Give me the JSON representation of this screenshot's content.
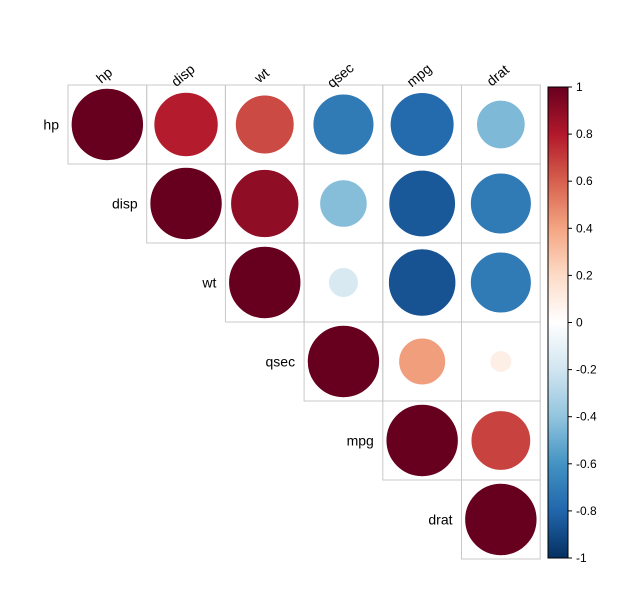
{
  "chart_data": {
    "type": "heatmap",
    "subtype": "correlation-circle-upper-triangle",
    "variables": [
      "hp",
      "disp",
      "wt",
      "qsec",
      "mpg",
      "drat"
    ],
    "matrix": [
      [
        1.0,
        0.79,
        0.66,
        -0.71,
        -0.78,
        -0.45
      ],
      [
        0.79,
        1.0,
        0.89,
        -0.43,
        -0.85,
        -0.71
      ],
      [
        0.66,
        0.89,
        1.0,
        -0.17,
        -0.87,
        -0.71
      ],
      [
        -0.71,
        -0.43,
        -0.17,
        1.0,
        0.42,
        0.09
      ],
      [
        -0.78,
        -0.85,
        -0.87,
        0.42,
        1.0,
        0.68
      ],
      [
        -0.45,
        -0.71,
        -0.71,
        0.09,
        0.68,
        1.0
      ]
    ],
    "colorbar": {
      "range": [
        -1,
        1
      ],
      "tick_labels": [
        "1",
        "0.8",
        "0.6",
        "0.4",
        "0.2",
        "0",
        "-0.2",
        "-0.4",
        "-0.6",
        "-0.8",
        "-1"
      ],
      "colors": [
        "#67001F",
        "#B2182B",
        "#D6604D",
        "#F4A582",
        "#FDDBC7",
        "#FFFFFF",
        "#D1E5F0",
        "#92C5DE",
        "#4393C3",
        "#2166AC",
        "#053061"
      ]
    },
    "legend_position": "right"
  }
}
